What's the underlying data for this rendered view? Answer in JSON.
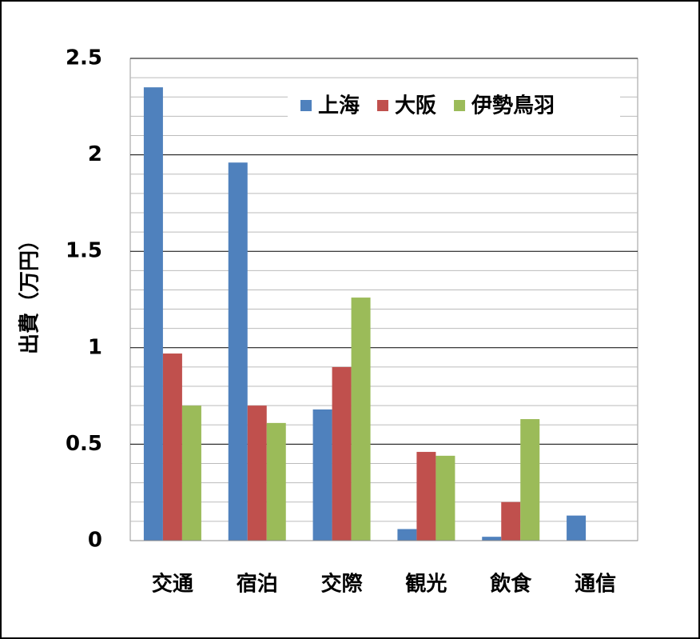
{
  "chart_data": {
    "type": "bar",
    "y_label": "出費（万円）",
    "categories": [
      "交通",
      "宿泊",
      "交際",
      "観光",
      "飲食",
      "通信"
    ],
    "series": [
      {
        "name": "上海",
        "color": "#4f81bd",
        "values": [
          2.35,
          1.96,
          0.68,
          0.06,
          0.02,
          0.13
        ]
      },
      {
        "name": "大阪",
        "color": "#c0504d",
        "values": [
          0.97,
          0.7,
          0.9,
          0.46,
          0.2,
          null
        ]
      },
      {
        "name": "伊勢鳥羽",
        "color": "#9bbb59",
        "values": [
          0.7,
          0.61,
          1.26,
          0.44,
          0.63,
          null
        ]
      }
    ],
    "ylim": [
      0,
      2.5
    ],
    "yticks": [
      0,
      0.5,
      1,
      1.5,
      2,
      2.5
    ],
    "minor_yticks": [
      0.1,
      0.2,
      0.3,
      0.4,
      0.6,
      0.7,
      0.8,
      0.9,
      1.1,
      1.2,
      1.3,
      1.4,
      1.6,
      1.7,
      1.8,
      1.9,
      2.1,
      2.2,
      2.3,
      2.4
    ],
    "grid": true,
    "legend": "top-right"
  }
}
